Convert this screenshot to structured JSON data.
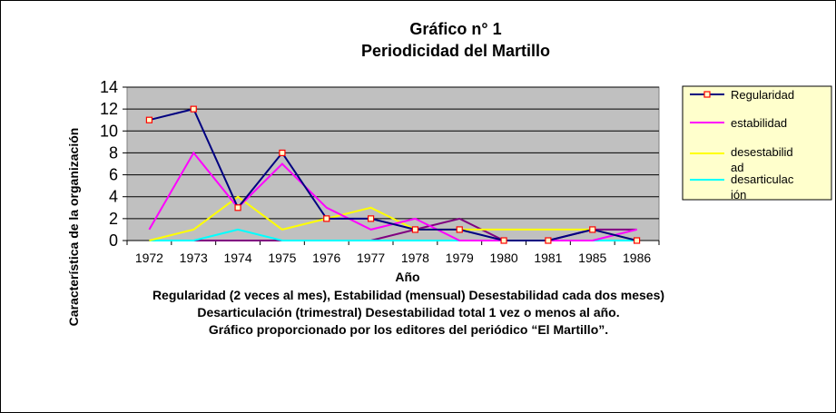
{
  "chart_data": {
    "type": "line",
    "title_line1": "Gráfico n° 1",
    "title_line2": "Periodicidad  del Martillo",
    "xlabel": "Año",
    "ylabel": "Característica de la organización",
    "ylim": [
      0,
      14
    ],
    "yticks": [
      "0",
      "2",
      "4",
      "6",
      "8",
      "10",
      "12",
      "14"
    ],
    "categories": [
      "1972",
      "1973",
      "1974",
      "1975",
      "1976",
      "1977",
      "1978",
      "1979",
      "1980",
      "1981",
      "1985",
      "1986"
    ],
    "grid": true,
    "legend_position": "right",
    "series": [
      {
        "name": "Regularidad",
        "color": "#000080",
        "markers": true,
        "values": [
          11,
          12,
          3,
          8,
          2,
          2,
          1,
          1,
          0,
          0,
          1,
          0
        ]
      },
      {
        "name": "estabilidad",
        "color": "#ff00ff",
        "markers": false,
        "values": [
          1,
          8,
          3,
          7,
          3,
          1,
          2,
          0,
          0,
          0,
          0,
          1
        ]
      },
      {
        "name": "desestabilidad",
        "color": "#ffff00",
        "markers": false,
        "values": [
          0,
          1,
          4,
          1,
          2,
          3,
          1,
          1,
          1,
          1,
          1,
          0
        ]
      },
      {
        "name": "desarticulación",
        "color": "#00ffff",
        "markers": false,
        "values": [
          0,
          0,
          1,
          0,
          0,
          0,
          0,
          0,
          0,
          0,
          0,
          0
        ]
      },
      {
        "name": "",
        "color": "#800080",
        "markers": false,
        "in_legend": false,
        "values": [
          0,
          0,
          0,
          0,
          0,
          0,
          1,
          2,
          0,
          0,
          1,
          1
        ]
      }
    ],
    "legend_lines": {
      "regularidad": [
        "Regularidad"
      ],
      "estabilidad": [
        "estabilidad"
      ],
      "desestabilidad": [
        "desestabilid",
        "ad"
      ],
      "desarticulacion": [
        "desarticulac",
        "ión"
      ]
    },
    "notes": [
      "Regularidad  (2 veces al mes), Estabilidad  (mensual) Desestabilidad  cada dos meses)",
      "Desarticulación  (trimestral) Desestabilidad  total 1 vez o menos al año.",
      "Gráfico proporcionado por los editores del periódico “El Martillo”."
    ]
  }
}
